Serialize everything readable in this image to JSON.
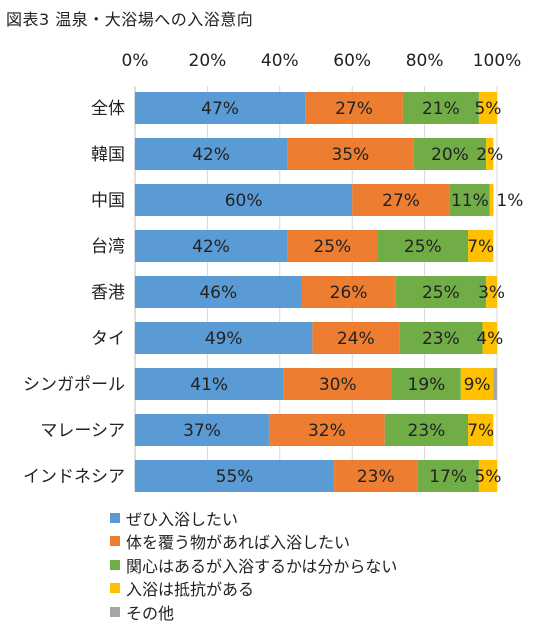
{
  "title": "図表3  温泉・大浴場への入浴意向",
  "chart_data": {
    "type": "bar",
    "orientation": "horizontal",
    "stacked": true,
    "xlim": [
      0,
      100
    ],
    "x_ticks": [
      "0%",
      "20%",
      "40%",
      "60%",
      "80%",
      "100%"
    ],
    "grid": true,
    "legend_position": "bottom",
    "categories": [
      "全体",
      "韓国",
      "中国",
      "台湾",
      "香港",
      "タイ",
      "シンガポール",
      "マレーシア",
      "インドネシア"
    ],
    "series": [
      {
        "name": "ぜひ入浴したい",
        "color": "#5b9bd5",
        "values": [
          47,
          42,
          60,
          42,
          46,
          49,
          41,
          37,
          55
        ]
      },
      {
        "name": "体を覆う物があれば入浴したい",
        "color": "#ed7d31",
        "values": [
          27,
          35,
          27,
          25,
          26,
          24,
          30,
          32,
          23
        ]
      },
      {
        "name": "関心はあるが入浴するかは分からない",
        "color": "#70ad47",
        "values": [
          21,
          20,
          11,
          25,
          25,
          23,
          19,
          23,
          17
        ]
      },
      {
        "name": "入浴は抵抗がある",
        "color": "#ffc000",
        "values": [
          5,
          2,
          1,
          7,
          3,
          4,
          9,
          7,
          5
        ]
      },
      {
        "name": "その他",
        "color": "#a5a5a5",
        "values": [
          0,
          0,
          0,
          0,
          0,
          0,
          1,
          0,
          0
        ]
      }
    ],
    "data_labels": [
      [
        "47%",
        "42%",
        "60%",
        "42%",
        "46%",
        "49%",
        "41%",
        "37%",
        "55%"
      ],
      [
        "27%",
        "35%",
        "27%",
        "25%",
        "26%",
        "24%",
        "30%",
        "32%",
        "23%"
      ],
      [
        "21%",
        "20%",
        "11%",
        "25%",
        "25%",
        "23%",
        "19%",
        "23%",
        "17%"
      ],
      [
        "5%",
        "2%",
        "1%",
        "7%",
        "3%",
        "4%",
        "9%",
        "7%",
        "5%"
      ],
      [
        "",
        "",
        "",
        "",
        "",
        "",
        "",
        "",
        ""
      ]
    ]
  }
}
